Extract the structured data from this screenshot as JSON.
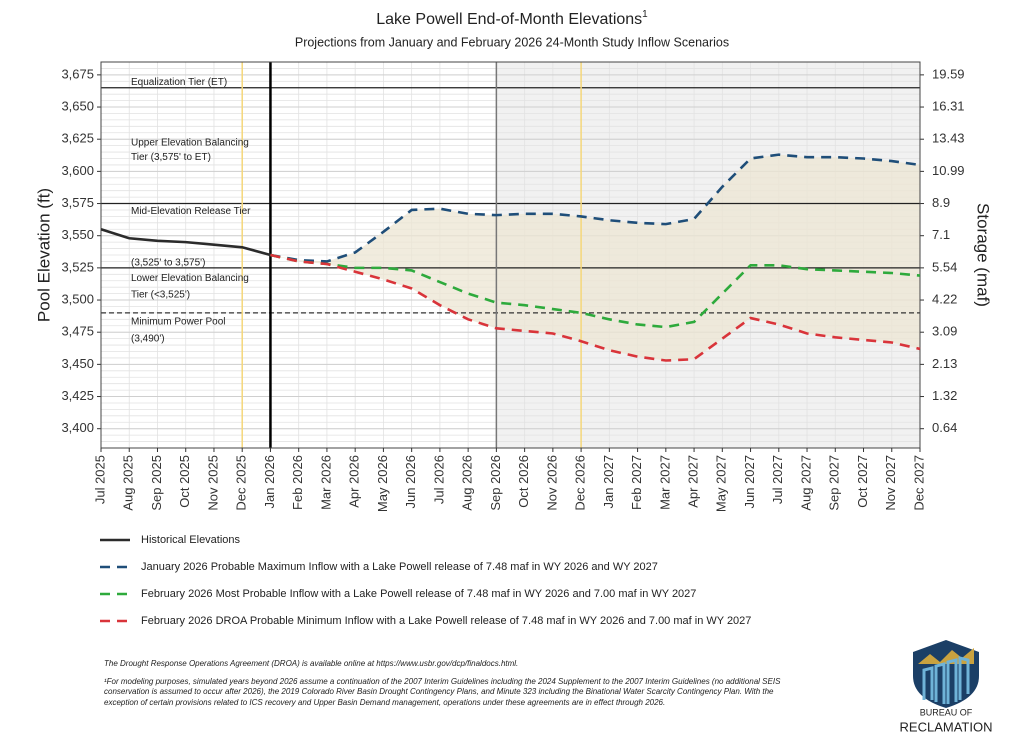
{
  "chart_data": {
    "type": "line",
    "title": "Lake Powell End-of-Month Elevations",
    "title_note": "1",
    "subtitle": "Projections from January and February 2026 24-Month Study Inflow Scenarios",
    "y_label": "Pool Elevation (ft)",
    "y2_label": "Storage (maf)",
    "categories": [
      "Jul 2025",
      "Aug 2025",
      "Sep 2025",
      "Oct 2025",
      "Nov 2025",
      "Dec 2025",
      "Jan 2026",
      "Feb 2026",
      "Mar 2026",
      "Apr 2026",
      "May 2026",
      "Jun 2026",
      "Jul 2026",
      "Aug 2026",
      "Sep 2026",
      "Oct 2026",
      "Nov 2026",
      "Dec 2026",
      "Jan 2027",
      "Feb 2027",
      "Mar 2027",
      "Apr 2027",
      "May 2027",
      "Jun 2027",
      "Jul 2027",
      "Aug 2027",
      "Sep 2027",
      "Oct 2027",
      "Nov 2027",
      "Dec 2027"
    ],
    "ylim": [
      3385,
      3685
    ],
    "yticks": [
      {
        "value": 3400,
        "label": "3,400"
      },
      {
        "value": 3425,
        "label": "3,425"
      },
      {
        "value": 3450,
        "label": "3,450"
      },
      {
        "value": 3475,
        "label": "3,475"
      },
      {
        "value": 3500,
        "label": "3,500"
      },
      {
        "value": 3525,
        "label": "3,525"
      },
      {
        "value": 3550,
        "label": "3,550"
      },
      {
        "value": 3575,
        "label": "3,575"
      },
      {
        "value": 3600,
        "label": "3,600"
      },
      {
        "value": 3625,
        "label": "3,625"
      },
      {
        "value": 3650,
        "label": "3,650"
      },
      {
        "value": 3675,
        "label": "3,675"
      }
    ],
    "y2ticks": [
      {
        "value": 0.64,
        "elevation": 3400
      },
      {
        "value": 1.32,
        "elevation": 3425
      },
      {
        "value": 2.13,
        "elevation": 3450
      },
      {
        "value": 3.09,
        "elevation": 3475
      },
      {
        "value": 4.22,
        "elevation": 3500
      },
      {
        "value": 5.54,
        "elevation": 3525
      },
      {
        "value": 7.1,
        "elevation": 3550
      },
      {
        "value": 8.9,
        "elevation": 3575
      },
      {
        "value": 10.99,
        "elevation": 3600
      },
      {
        "value": 13.43,
        "elevation": 3625
      },
      {
        "value": 16.31,
        "elevation": 3650
      },
      {
        "value": 19.59,
        "elevation": 3675
      }
    ],
    "grid": true,
    "minor_grid_step": 5,
    "hlines": [
      {
        "value": 3665,
        "style": "solid"
      },
      {
        "value": 3575,
        "style": "solid"
      },
      {
        "value": 3525,
        "style": "solid"
      },
      {
        "value": 3490,
        "style": "dashed"
      }
    ],
    "vlines": [
      {
        "x": "Dec 2025",
        "color": "#f5d77a"
      },
      {
        "x": "Jan 2026",
        "color": "#000000"
      },
      {
        "x": "Sep 2026",
        "color": "#777777"
      },
      {
        "x": "Dec 2026",
        "color": "#f5d77a"
      }
    ],
    "shade_from": "Sep 2026",
    "fill_between": [
      1,
      3
    ],
    "annotations": [
      {
        "text": "Equalization Tier (ET)",
        "y": 3669
      },
      {
        "text": "Upper Elevation Balancing",
        "y": 3622
      },
      {
        "text": "Tier (3,575' to ET)",
        "y": 3611
      },
      {
        "text": "Mid-Elevation Release Tier",
        "y": 3569
      },
      {
        "text": "(3,525' to 3,575')",
        "y": 3529
      },
      {
        "text": "Lower Elevation Balancing",
        "y": 3517
      },
      {
        "text": "Tier (<3,525')",
        "y": 3504
      },
      {
        "text": "Minimum Power Pool",
        "y": 3483
      },
      {
        "text": "(3,490')",
        "y": 3470
      }
    ],
    "series": [
      {
        "name": "Historical Elevations",
        "color": "#2b2b2b",
        "dash": "solid",
        "values": [
          3555,
          3548,
          3546,
          3545,
          3543,
          3541,
          3535,
          null,
          null,
          null,
          null,
          null,
          null,
          null,
          null,
          null,
          null,
          null,
          null,
          null,
          null,
          null,
          null,
          null,
          null,
          null,
          null,
          null,
          null,
          null
        ]
      },
      {
        "name": "January 2026 Probable Maximum Inflow with a Lake Powell release of 7.48 maf in WY 2026 and WY 2027",
        "color": "#1f4e79",
        "dash": "dashed",
        "values": [
          null,
          null,
          null,
          null,
          null,
          null,
          3535,
          3531,
          3530,
          3537,
          3553,
          3570,
          3571,
          3567,
          3566,
          3567,
          3567,
          3565,
          3562,
          3560,
          3559,
          3563,
          3588,
          3610,
          3613,
          3611,
          3611,
          3610,
          3608,
          3605
        ]
      },
      {
        "name": "February 2026 Most Probable Inflow with a Lake Powell release of 7.48 maf in WY 2026 and 7.00 maf in WY 2027",
        "color": "#2eaa3c",
        "dash": "dashed",
        "values": [
          null,
          null,
          null,
          null,
          null,
          null,
          3535,
          3530,
          3528,
          3525,
          3525,
          3523,
          3514,
          3505,
          3498,
          3496,
          3493,
          3490,
          3485,
          3481,
          3479,
          3483,
          3505,
          3527,
          3527,
          3524,
          3523,
          3522,
          3521,
          3519
        ]
      },
      {
        "name": "February 2026 DROA Probable Minimum Inflow with a Lake Powell release of 7.48 maf in WY 2026 and 7.00 maf in WY 2027",
        "color": "#d9343a",
        "dash": "dashed",
        "values": [
          null,
          null,
          null,
          null,
          null,
          null,
          3535,
          3530,
          3528,
          3522,
          3516,
          3509,
          3496,
          3485,
          3478,
          3476,
          3474,
          3468,
          3461,
          3456,
          3453,
          3454,
          3470,
          3486,
          3481,
          3474,
          3471,
          3469,
          3467,
          3462
        ]
      }
    ]
  },
  "footnotes": [
    "The Drought Response Operations Agreement (DROA) is available online at https://www.usbr.gov/dcp/finaldocs.html.",
    "¹For modeling purposes, simulated years beyond 2026 assume a continuation of the 2007 Interim Guidelines including the 2024 Supplement to the 2007 Interim Guidelines (no additional SEIS",
    "conservation is assumed to occur after 2026), the 2019 Colorado River Basin Drought Contingency Plans, and Minute 323 including the Binational Water Scarcity Contingency Plan. With the",
    "exception of certain provisions related to ICS recovery and Upper Basin Demand management, operations under these agreements are in effect through 2026."
  ],
  "logo": {
    "line1": "BUREAU OF",
    "line2": "RECLAMATION"
  }
}
